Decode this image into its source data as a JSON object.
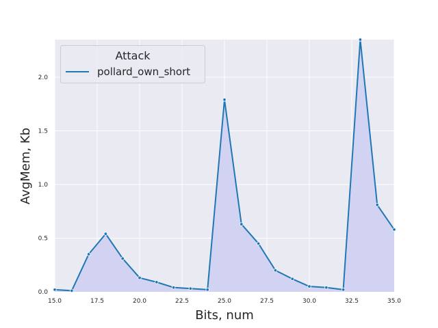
{
  "chart_data": {
    "type": "line",
    "xlabel": "Bits, num",
    "ylabel": "AvgMem, Kb",
    "xlim": [
      15.0,
      35.0
    ],
    "ylim": [
      0.0,
      2.35
    ],
    "xticks": [
      15.0,
      17.5,
      20.0,
      22.5,
      25.0,
      27.5,
      30.0,
      32.5,
      35.0
    ],
    "xtick_labels": [
      "15.0",
      "17.5",
      "20.0",
      "22.5",
      "25.0",
      "27.5",
      "30.0",
      "32.5",
      "35.0"
    ],
    "yticks": [
      0.0,
      0.5,
      1.0,
      1.5,
      2.0
    ],
    "ytick_labels": [
      "0.0",
      "0.5",
      "1.0",
      "1.5",
      "2.0"
    ],
    "grid": true,
    "fill_under": true,
    "legend": {
      "title": "Attack",
      "placement": "top-left"
    },
    "series": [
      {
        "name": "pollard_own_short",
        "x": [
          15,
          16,
          17,
          18,
          19,
          20,
          21,
          22,
          23,
          24,
          25,
          26,
          27,
          28,
          29,
          30,
          31,
          32,
          33,
          34,
          35
        ],
        "values": [
          0.02,
          0.01,
          0.35,
          0.54,
          0.31,
          0.13,
          0.09,
          0.04,
          0.03,
          0.02,
          1.79,
          0.63,
          0.45,
          0.2,
          0.12,
          0.05,
          0.04,
          0.02,
          2.35,
          0.81,
          0.58
        ]
      }
    ]
  },
  "colors": {
    "plot_background": "#eaeaf2",
    "grid": "#ffffff",
    "line": "#1f77b4",
    "fill": "#d2d3f2",
    "text": "#262626"
  }
}
